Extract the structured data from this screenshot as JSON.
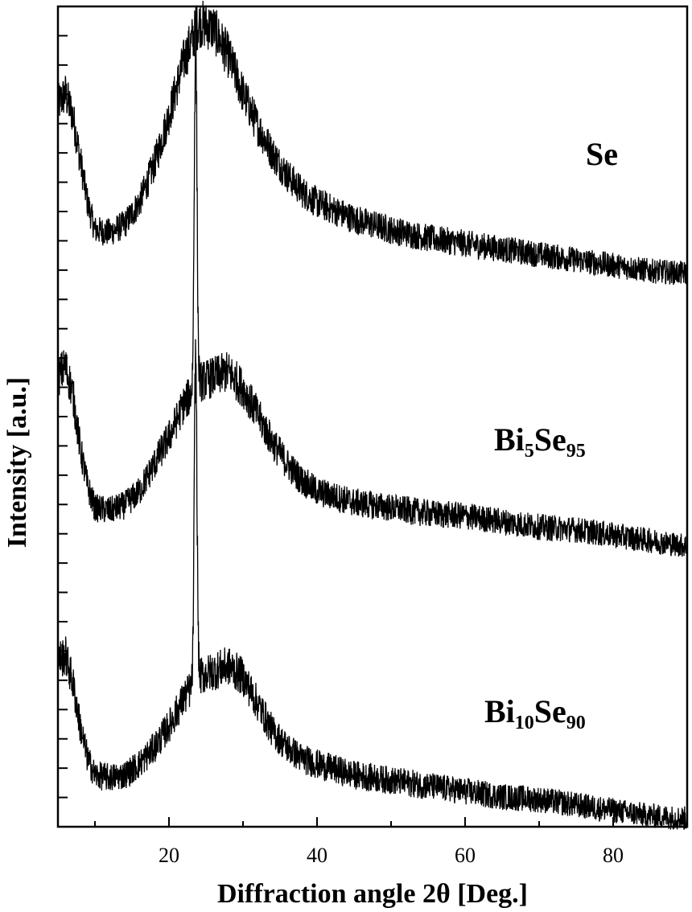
{
  "chart_data": {
    "type": "line",
    "xlabel": "Diffraction angle 2θ [Deg.]",
    "ylabel": "Intensity [a.u.]",
    "xlim": [
      5,
      90
    ],
    "xticks": [
      20,
      40,
      60,
      80
    ],
    "x_tick_labels": [
      "20",
      "40",
      "60",
      "80"
    ],
    "y_scale": "arbitrary units, curves vertically offset",
    "grid": false,
    "legend": "none",
    "line_color": "#000000",
    "series": [
      {
        "name": "Se",
        "label_parts": [
          {
            "text": "Se",
            "sub": false
          }
        ],
        "offset": 2.0,
        "points": [
          [
            5,
            0.62
          ],
          [
            6,
            0.66
          ],
          [
            7,
            0.58
          ],
          [
            8,
            0.42
          ],
          [
            9,
            0.26
          ],
          [
            10,
            0.16
          ],
          [
            12,
            0.15
          ],
          [
            14,
            0.18
          ],
          [
            16,
            0.26
          ],
          [
            18,
            0.4
          ],
          [
            20,
            0.58
          ],
          [
            22,
            0.78
          ],
          [
            24,
            0.92
          ],
          [
            26,
            0.9
          ],
          [
            28,
            0.8
          ],
          [
            30,
            0.66
          ],
          [
            32,
            0.54
          ],
          [
            34,
            0.44
          ],
          [
            36,
            0.36
          ],
          [
            38,
            0.3
          ],
          [
            40,
            0.26
          ],
          [
            45,
            0.2
          ],
          [
            50,
            0.16
          ],
          [
            55,
            0.13
          ],
          [
            60,
            0.11
          ],
          [
            65,
            0.09
          ],
          [
            70,
            0.07
          ],
          [
            75,
            0.05
          ],
          [
            80,
            0.03
          ],
          [
            85,
            0.01
          ],
          [
            90,
            0.0
          ]
        ],
        "sharp_peaks": []
      },
      {
        "name": "Bi5Se95",
        "label_parts": [
          {
            "text": "Bi",
            "sub": false
          },
          {
            "text": "5",
            "sub": true
          },
          {
            "text": "Se",
            "sub": false
          },
          {
            "text": "95",
            "sub": true
          }
        ],
        "offset": 1.0,
        "points": [
          [
            5,
            0.62
          ],
          [
            6,
            0.66
          ],
          [
            7,
            0.56
          ],
          [
            8,
            0.36
          ],
          [
            9,
            0.22
          ],
          [
            10,
            0.14
          ],
          [
            12,
            0.13
          ],
          [
            14,
            0.15
          ],
          [
            16,
            0.2
          ],
          [
            18,
            0.3
          ],
          [
            20,
            0.4
          ],
          [
            22,
            0.52
          ],
          [
            24,
            0.6
          ],
          [
            26,
            0.62
          ],
          [
            28,
            0.64
          ],
          [
            30,
            0.58
          ],
          [
            32,
            0.48
          ],
          [
            34,
            0.38
          ],
          [
            36,
            0.3
          ],
          [
            38,
            0.24
          ],
          [
            40,
            0.2
          ],
          [
            45,
            0.16
          ],
          [
            50,
            0.14
          ],
          [
            55,
            0.12
          ],
          [
            60,
            0.11
          ],
          [
            65,
            0.09
          ],
          [
            70,
            0.07
          ],
          [
            75,
            0.06
          ],
          [
            80,
            0.04
          ],
          [
            85,
            0.02
          ],
          [
            90,
            0.0
          ]
        ],
        "sharp_peaks": [
          [
            23.6,
            1.3
          ]
        ]
      },
      {
        "name": "Bi10Se90",
        "label_parts": [
          {
            "text": "Bi",
            "sub": false
          },
          {
            "text": "10",
            "sub": true
          },
          {
            "text": "Se",
            "sub": false
          },
          {
            "text": "90",
            "sub": true
          }
        ],
        "offset": 0.0,
        "points": [
          [
            5,
            0.58
          ],
          [
            6,
            0.6
          ],
          [
            7,
            0.5
          ],
          [
            8,
            0.34
          ],
          [
            9,
            0.22
          ],
          [
            10,
            0.16
          ],
          [
            12,
            0.15
          ],
          [
            14,
            0.16
          ],
          [
            16,
            0.2
          ],
          [
            18,
            0.26
          ],
          [
            20,
            0.34
          ],
          [
            22,
            0.44
          ],
          [
            24,
            0.52
          ],
          [
            26,
            0.54
          ],
          [
            28,
            0.56
          ],
          [
            30,
            0.52
          ],
          [
            32,
            0.42
          ],
          [
            34,
            0.32
          ],
          [
            36,
            0.26
          ],
          [
            38,
            0.22
          ],
          [
            40,
            0.2
          ],
          [
            45,
            0.16
          ],
          [
            50,
            0.14
          ],
          [
            55,
            0.12
          ],
          [
            60,
            0.1
          ],
          [
            65,
            0.08
          ],
          [
            70,
            0.07
          ],
          [
            75,
            0.05
          ],
          [
            80,
            0.03
          ],
          [
            85,
            0.01
          ],
          [
            90,
            0.0
          ]
        ],
        "sharp_peaks": [
          [
            23.6,
            1.2
          ]
        ]
      }
    ]
  }
}
